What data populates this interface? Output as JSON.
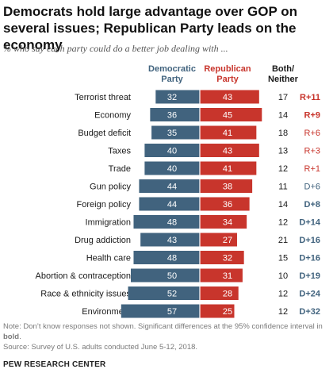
{
  "title": "Democrats hold large advantage over GOP on several issues; Republican Party leads on the economy",
  "subtitle": "% who say each party could do a better job dealing with ...",
  "notes": {
    "note_prefix": "Note: Don’t know responses not shown. Significant differences at the 95% confidence interval in ",
    "note_bold": "bold",
    "note_suffix": ".",
    "source": "Source: Survey of U.S. adults conducted June 5-12, 2018."
  },
  "brand": "PEW RESEARCH CENTER",
  "colors": {
    "democratic": "#41637e",
    "republican": "#c8352c",
    "dem_text": "#41637e",
    "rep_text": "#c8352c",
    "neutral_text": "#1a1a1a"
  },
  "chart_data": {
    "type": "bar",
    "orientation": "diverging-horizontal",
    "xlim": [
      0,
      60
    ],
    "column_headers": {
      "democratic": "Democratic Party",
      "republican": "Republican Party",
      "both_neither": "Both/ Neither"
    },
    "categories": [
      "Terrorist threat",
      "Economy",
      "Budget deficit",
      "Taxes",
      "Trade",
      "Gun policy",
      "Foreign policy",
      "Immigration",
      "Drug addiction",
      "Health care",
      "Abortion & contraception",
      "Race & ethnicity issues",
      "Environment"
    ],
    "series": [
      {
        "name": "Democratic Party",
        "values": [
          32,
          36,
          35,
          40,
          40,
          44,
          44,
          48,
          43,
          48,
          50,
          52,
          57
        ]
      },
      {
        "name": "Republican Party",
        "values": [
          43,
          45,
          41,
          43,
          41,
          38,
          36,
          34,
          27,
          32,
          31,
          28,
          25
        ]
      },
      {
        "name": "Both/Neither",
        "values": [
          17,
          14,
          18,
          13,
          12,
          11,
          14,
          12,
          21,
          15,
          10,
          12,
          12
        ]
      }
    ],
    "differences": [
      "R+11",
      "R+9",
      "R+6",
      "R+3",
      "R+1",
      "D+6",
      "D+8",
      "D+14",
      "D+16",
      "D+16",
      "D+19",
      "D+24",
      "D+32"
    ],
    "significant": [
      true,
      true,
      false,
      false,
      false,
      false,
      true,
      true,
      true,
      true,
      true,
      true,
      true
    ]
  }
}
